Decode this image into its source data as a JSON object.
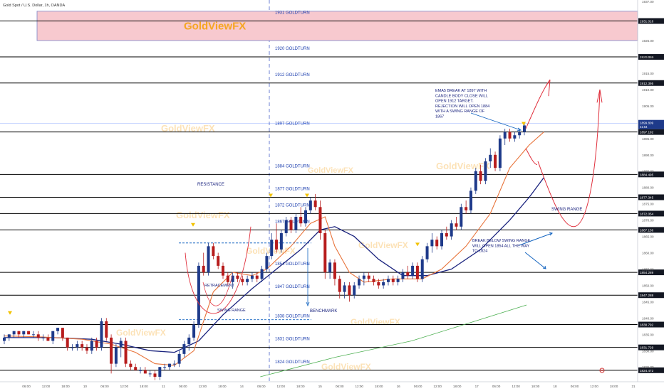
{
  "header": {
    "symbol_title": "Gold Spot / U.S. Dollar, 1h, OANDA"
  },
  "colors": {
    "bull": "#1e3a8a",
    "bear": "#b71c1c",
    "level_line": "#000000",
    "level_label": "#1e40af",
    "ema_fast": "#e8743b",
    "ema_slow": "#1a237e",
    "ema_long": "#4caf50",
    "zone_fill": "#f7c9cf",
    "zone_border": "#7b86c9",
    "arrow": "#1565c0",
    "projection": "#e0303d",
    "watermark": "#f5a623",
    "marker": "#f2c200"
  },
  "chart_data": {
    "type": "candlestick",
    "title": "Gold Spot / U.S. Dollar, 1h, OANDA",
    "price_range": [
      1822,
      1937
    ],
    "x_ticks": [
      "06:00",
      "12:00",
      "18:00",
      "10",
      "06:00",
      "12:00",
      "18:00",
      "11",
      "06:00",
      "12:00",
      "18:00",
      "14",
      "06:00",
      "12:00",
      "18:00",
      "15",
      "06:00",
      "12:00",
      "18:00",
      "16",
      "06:00",
      "12:00",
      "18:00",
      "17",
      "06:00",
      "12:00",
      "18:00",
      "18",
      "06:00",
      "12:00",
      "18:00",
      "21"
    ],
    "y_axis_labels": [
      "1937.00",
      "1925.00",
      "1920.00",
      "1915.00",
      "1910.00",
      "1905.00",
      "1900.00",
      "1895.00",
      "1890.00",
      "1885.00",
      "1880.00",
      "1875.00",
      "1870.00",
      "1865.00",
      "1860.00",
      "1855.00",
      "1850.00",
      "1845.00",
      "1840.00",
      "1835.00",
      "1830.00",
      "1825.00",
      "1820.00"
    ],
    "levels": [
      {
        "price": 1931,
        "label": "1931 GOLDTURN",
        "axis_tag": "1931.016"
      },
      {
        "price": 1920,
        "label": "1920 GOLDTURN",
        "axis_tag": "1920.059"
      },
      {
        "price": 1912,
        "label": "1912 GOLDTURN",
        "axis_tag": "1912.395"
      },
      {
        "price": 1897,
        "label": "1897 GOLDTURN",
        "axis_tag": "1897.192"
      },
      {
        "price": 1884,
        "label": "1884 GOLDTURN",
        "axis_tag": "1884.495"
      },
      {
        "price": 1877,
        "label": "1877 GOLDTURN",
        "axis_tag": "1877.345"
      },
      {
        "price": 1872,
        "label": "1872 GOLDTURN",
        "axis_tag": "1872.054"
      },
      {
        "price": 1867,
        "label": "1867 GOLDTURN",
        "axis_tag": "1867.136"
      },
      {
        "price": 1854,
        "label": "1854 GOLDTURN",
        "axis_tag": "1854.289"
      },
      {
        "price": 1847,
        "label": "1847 GOLDTURN",
        "axis_tag": "1847.288"
      },
      {
        "price": 1838,
        "label": "1838 GOLDTURN",
        "axis_tag": "1838.792"
      },
      {
        "price": 1831,
        "label": "1831 GOLDTURN",
        "axis_tag": "1831.729"
      },
      {
        "price": 1824,
        "label": "1824 GOLDTURN",
        "axis_tag": "1824.472"
      }
    ],
    "current_price_tag": [
      "1899.809",
      "41:54"
    ],
    "candles": [
      [
        1833,
        1835,
        1832,
        1834
      ],
      [
        1834,
        1835,
        1833,
        1835
      ],
      [
        1835,
        1836,
        1834,
        1836
      ],
      [
        1836,
        1836,
        1834,
        1835
      ],
      [
        1835,
        1836,
        1834,
        1836
      ],
      [
        1836,
        1836,
        1835,
        1835
      ],
      [
        1835,
        1836,
        1834,
        1835
      ],
      [
        1835,
        1836,
        1833,
        1834
      ],
      [
        1834,
        1835,
        1833,
        1834
      ],
      [
        1834,
        1835,
        1833,
        1833
      ],
      [
        1833,
        1836,
        1832,
        1836
      ],
      [
        1836,
        1837,
        1835,
        1837
      ],
      [
        1837,
        1837,
        1833,
        1834
      ],
      [
        1834,
        1834,
        1830,
        1831
      ],
      [
        1831,
        1832,
        1830,
        1831
      ],
      [
        1831,
        1833,
        1830,
        1832
      ],
      [
        1832,
        1833,
        1830,
        1831
      ],
      [
        1831,
        1832,
        1829,
        1830
      ],
      [
        1830,
        1834,
        1829,
        1833
      ],
      [
        1833,
        1834,
        1830,
        1831
      ],
      [
        1831,
        1840,
        1830,
        1839
      ],
      [
        1839,
        1840,
        1833,
        1834
      ],
      [
        1834,
        1835,
        1823,
        1826
      ],
      [
        1826,
        1832,
        1825,
        1831
      ],
      [
        1831,
        1834,
        1828,
        1833
      ],
      [
        1833,
        1834,
        1825,
        1826
      ],
      [
        1826,
        1827,
        1824,
        1825
      ],
      [
        1825,
        1826,
        1824,
        1824
      ],
      [
        1824,
        1825,
        1823,
        1824
      ],
      [
        1824,
        1825,
        1823,
        1823
      ],
      [
        1823,
        1824,
        1822,
        1823
      ],
      [
        1823,
        1824,
        1821,
        1822
      ],
      [
        1822,
        1825,
        1821,
        1825
      ],
      [
        1825,
        1826,
        1824,
        1825
      ],
      [
        1825,
        1826,
        1824,
        1826
      ],
      [
        1826,
        1827,
        1825,
        1826
      ],
      [
        1826,
        1830,
        1825,
        1829
      ],
      [
        1829,
        1833,
        1828,
        1832
      ],
      [
        1832,
        1835,
        1830,
        1834
      ],
      [
        1834,
        1839,
        1833,
        1838
      ],
      [
        1838,
        1857,
        1837,
        1856
      ],
      [
        1856,
        1860,
        1853,
        1854
      ],
      [
        1854,
        1863,
        1853,
        1862
      ],
      [
        1862,
        1863,
        1858,
        1859
      ],
      [
        1859,
        1860,
        1855,
        1856
      ],
      [
        1856,
        1857,
        1852,
        1853
      ],
      [
        1853,
        1854,
        1850,
        1851
      ],
      [
        1851,
        1854,
        1849,
        1853
      ],
      [
        1853,
        1854,
        1851,
        1852
      ],
      [
        1852,
        1853,
        1850,
        1851
      ],
      [
        1851,
        1853,
        1850,
        1852
      ],
      [
        1852,
        1854,
        1851,
        1853
      ],
      [
        1853,
        1854,
        1851,
        1852
      ],
      [
        1852,
        1856,
        1851,
        1855
      ],
      [
        1855,
        1860,
        1854,
        1859
      ],
      [
        1859,
        1866,
        1858,
        1864
      ],
      [
        1864,
        1869,
        1860,
        1861
      ],
      [
        1861,
        1867,
        1860,
        1866
      ],
      [
        1866,
        1871,
        1865,
        1870
      ],
      [
        1870,
        1871,
        1866,
        1867
      ],
      [
        1867,
        1872,
        1866,
        1871
      ],
      [
        1871,
        1874,
        1868,
        1869
      ],
      [
        1869,
        1874,
        1868,
        1873
      ],
      [
        1873,
        1877,
        1872,
        1876
      ],
      [
        1876,
        1878,
        1873,
        1874
      ],
      [
        1874,
        1876,
        1864,
        1866
      ],
      [
        1866,
        1867,
        1852,
        1854
      ],
      [
        1854,
        1858,
        1852,
        1857
      ],
      [
        1857,
        1858,
        1850,
        1852
      ],
      [
        1852,
        1853,
        1846,
        1848
      ],
      [
        1848,
        1851,
        1846,
        1850
      ],
      [
        1850,
        1851,
        1845,
        1847
      ],
      [
        1847,
        1851,
        1846,
        1850
      ],
      [
        1850,
        1853,
        1849,
        1852
      ],
      [
        1852,
        1854,
        1850,
        1853
      ],
      [
        1853,
        1854,
        1851,
        1852
      ],
      [
        1852,
        1853,
        1850,
        1851
      ],
      [
        1851,
        1852,
        1849,
        1850
      ],
      [
        1850,
        1852,
        1849,
        1851
      ],
      [
        1851,
        1853,
        1850,
        1852
      ],
      [
        1852,
        1853,
        1850,
        1851
      ],
      [
        1851,
        1853,
        1850,
        1852
      ],
      [
        1852,
        1855,
        1851,
        1854
      ],
      [
        1854,
        1856,
        1852,
        1853
      ],
      [
        1853,
        1857,
        1852,
        1856
      ],
      [
        1856,
        1857,
        1851,
        1852
      ],
      [
        1852,
        1859,
        1851,
        1858
      ],
      [
        1858,
        1863,
        1857,
        1862
      ],
      [
        1862,
        1866,
        1860,
        1864
      ],
      [
        1864,
        1865,
        1861,
        1862
      ],
      [
        1862,
        1867,
        1861,
        1866
      ],
      [
        1866,
        1868,
        1864,
        1865
      ],
      [
        1865,
        1870,
        1864,
        1869
      ],
      [
        1869,
        1871,
        1867,
        1868
      ],
      [
        1868,
        1875,
        1867,
        1874
      ],
      [
        1874,
        1876,
        1872,
        1873
      ],
      [
        1873,
        1880,
        1872,
        1879
      ],
      [
        1879,
        1886,
        1878,
        1885
      ],
      [
        1885,
        1887,
        1881,
        1882
      ],
      [
        1882,
        1889,
        1881,
        1888
      ],
      [
        1888,
        1892,
        1886,
        1890
      ],
      [
        1890,
        1891,
        1885,
        1886
      ],
      [
        1886,
        1896,
        1885,
        1895
      ],
      [
        1895,
        1898,
        1893,
        1897
      ],
      [
        1897,
        1898,
        1894,
        1895
      ],
      [
        1895,
        1897,
        1894,
        1896
      ],
      [
        1896,
        1898,
        1895,
        1897
      ],
      [
        1897,
        1900,
        1896,
        1899
      ]
    ],
    "ema_fast": [
      [
        1834.5,
        0
      ],
      [
        1834.2,
        8
      ],
      [
        1833.5,
        16
      ],
      [
        1832,
        22
      ],
      [
        1829.5,
        27
      ],
      [
        1826,
        31
      ],
      [
        1825.5,
        35
      ],
      [
        1830,
        39
      ],
      [
        1848,
        43
      ],
      [
        1854,
        47
      ],
      [
        1853,
        51
      ],
      [
        1855,
        54
      ],
      [
        1862,
        59
      ],
      [
        1869,
        63
      ],
      [
        1871,
        66
      ],
      [
        1862,
        68
      ],
      [
        1854,
        71
      ],
      [
        1851,
        74
      ],
      [
        1852,
        80
      ],
      [
        1852,
        86
      ],
      [
        1855,
        90
      ],
      [
        1862,
        95
      ],
      [
        1872,
        100
      ],
      [
        1886,
        104
      ],
      [
        1893,
        108
      ],
      [
        1897,
        111
      ]
    ],
    "ema_slow": [
      [
        1834,
        0
      ],
      [
        1834,
        10
      ],
      [
        1833.5,
        18
      ],
      [
        1832,
        24
      ],
      [
        1830,
        30
      ],
      [
        1829.5,
        35
      ],
      [
        1833,
        40
      ],
      [
        1841,
        45
      ],
      [
        1849,
        51
      ],
      [
        1855,
        56
      ],
      [
        1861,
        61
      ],
      [
        1867,
        65
      ],
      [
        1868,
        68
      ],
      [
        1865,
        72
      ],
      [
        1858,
        77
      ],
      [
        1853,
        82
      ],
      [
        1853,
        87
      ],
      [
        1855,
        92
      ],
      [
        1861,
        98
      ],
      [
        1870,
        104
      ],
      [
        1877,
        108
      ],
      [
        1883,
        111
      ]
    ],
    "ema_long": [
      [
        0.392,
        1822
      ],
      [
        0.505,
        1828
      ],
      [
        0.62,
        1833
      ],
      [
        0.715,
        1839
      ],
      [
        0.793,
        1844
      ]
    ],
    "annotations": {
      "resistance": "RESISTANCE",
      "retracement": "RETRACEMENT",
      "swing_range_left": "SWING RANGE",
      "benchmark": "BENCHMARK",
      "swing_range_right": "SWING RANGE",
      "ema_break_note": [
        "EMA5 BREAK AT 1897 WITH",
        "CANDLE BODY CLOSE WILL",
        "OPEN 1912 TARGET.",
        "REJECTION WILL OPEN 1884",
        "WITH A SWING RANGE OF",
        "1867"
      ],
      "break_below_note": [
        "BREAK BELOW SWING RANGE",
        "WILL OPEN 1854 ALL THE WAY",
        "TO 1824"
      ]
    },
    "watermark": "GoldViewFX",
    "zone": {
      "top": 1934,
      "bottom": 1925,
      "label": "GoldViewFX"
    }
  }
}
